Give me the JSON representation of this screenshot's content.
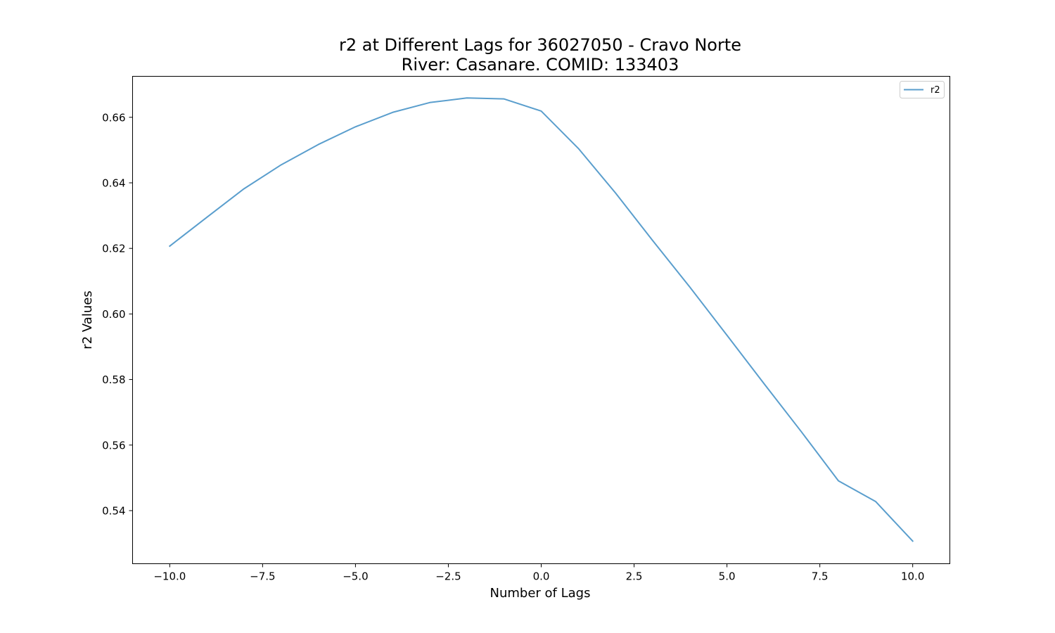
{
  "chart_data": {
    "type": "line",
    "title_line1": "r2 at Different Lags for 36027050 - Cravo Norte",
    "title_line2": "River: Casanare. COMID: 133403",
    "xlabel": "Number of Lags",
    "ylabel": "r2 Values",
    "xlim": [
      -11,
      11
    ],
    "ylim": [
      0.5238,
      0.6725
    ],
    "xticks": [
      -10.0,
      -7.5,
      -5.0,
      -2.5,
      0.0,
      2.5,
      5.0,
      7.5,
      10.0
    ],
    "xtick_labels": [
      "−10.0",
      "−7.5",
      "−5.0",
      "−2.5",
      "0.0",
      "2.5",
      "5.0",
      "7.5",
      "10.0"
    ],
    "yticks": [
      0.54,
      0.56,
      0.58,
      0.6,
      0.62,
      0.64,
      0.66
    ],
    "ytick_labels": [
      "0.54",
      "0.56",
      "0.58",
      "0.60",
      "0.62",
      "0.64",
      "0.66"
    ],
    "grid": false,
    "legend_position": "top-right",
    "series": [
      {
        "name": "r2",
        "color": "#5a9ecd",
        "x": [
          -10,
          -9,
          -8,
          -7,
          -6,
          -5,
          -4,
          -3,
          -2,
          -1,
          0,
          1,
          2,
          3,
          4,
          5,
          6,
          7,
          8,
          9,
          10
        ],
        "y": [
          0.6207,
          0.6295,
          0.6382,
          0.6455,
          0.6517,
          0.6571,
          0.6615,
          0.6645,
          0.6659,
          0.6656,
          0.6619,
          0.6505,
          0.6369,
          0.6224,
          0.6082,
          0.5935,
          0.5787,
          0.5641,
          0.5491,
          0.5428,
          0.5307
        ]
      }
    ]
  }
}
